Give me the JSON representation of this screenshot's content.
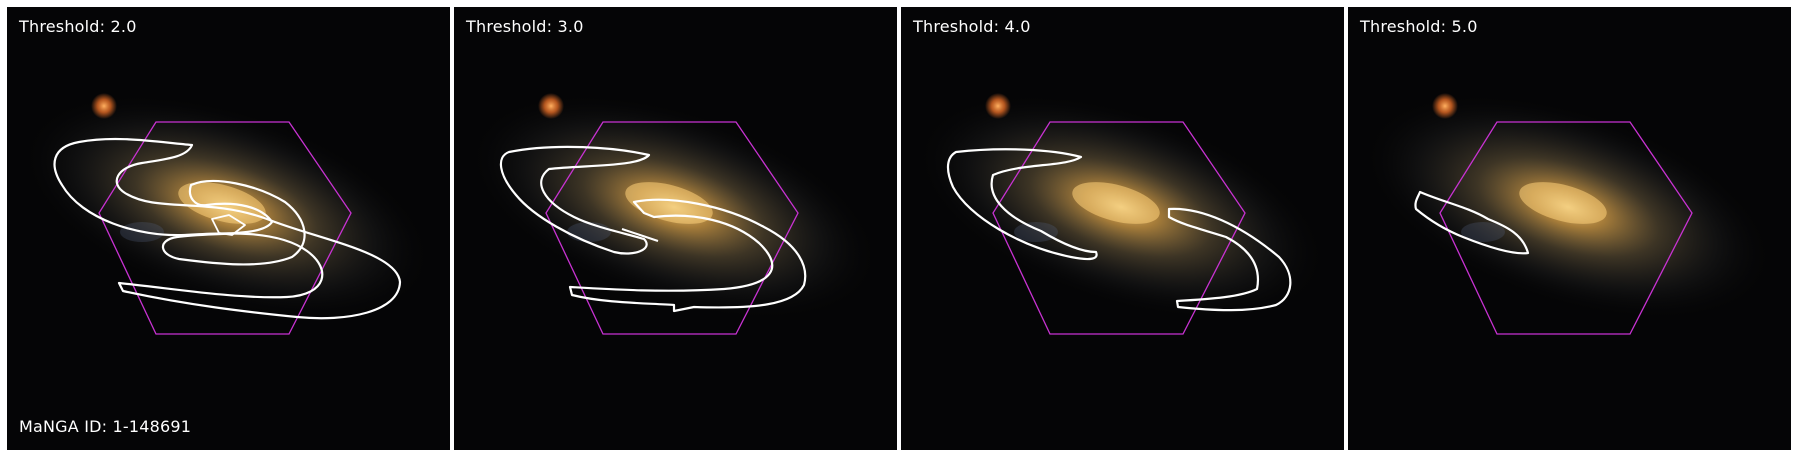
{
  "figure": {
    "manga_id": "MaNGA ID: 1-148691",
    "colors": {
      "contour": "#ffffff",
      "ifu_hexagon": "#c832d2",
      "galaxy_core": "#ffd27a",
      "sky_background": "#050506"
    },
    "panels": [
      {
        "threshold_label": "Threshold: 2.0",
        "threshold": 2.0
      },
      {
        "threshold_label": "Threshold: 3.0",
        "threshold": 3.0
      },
      {
        "threshold_label": "Threshold: 4.0",
        "threshold": 4.0
      },
      {
        "threshold_label": "Threshold: 5.0",
        "threshold": 5.0
      }
    ]
  }
}
